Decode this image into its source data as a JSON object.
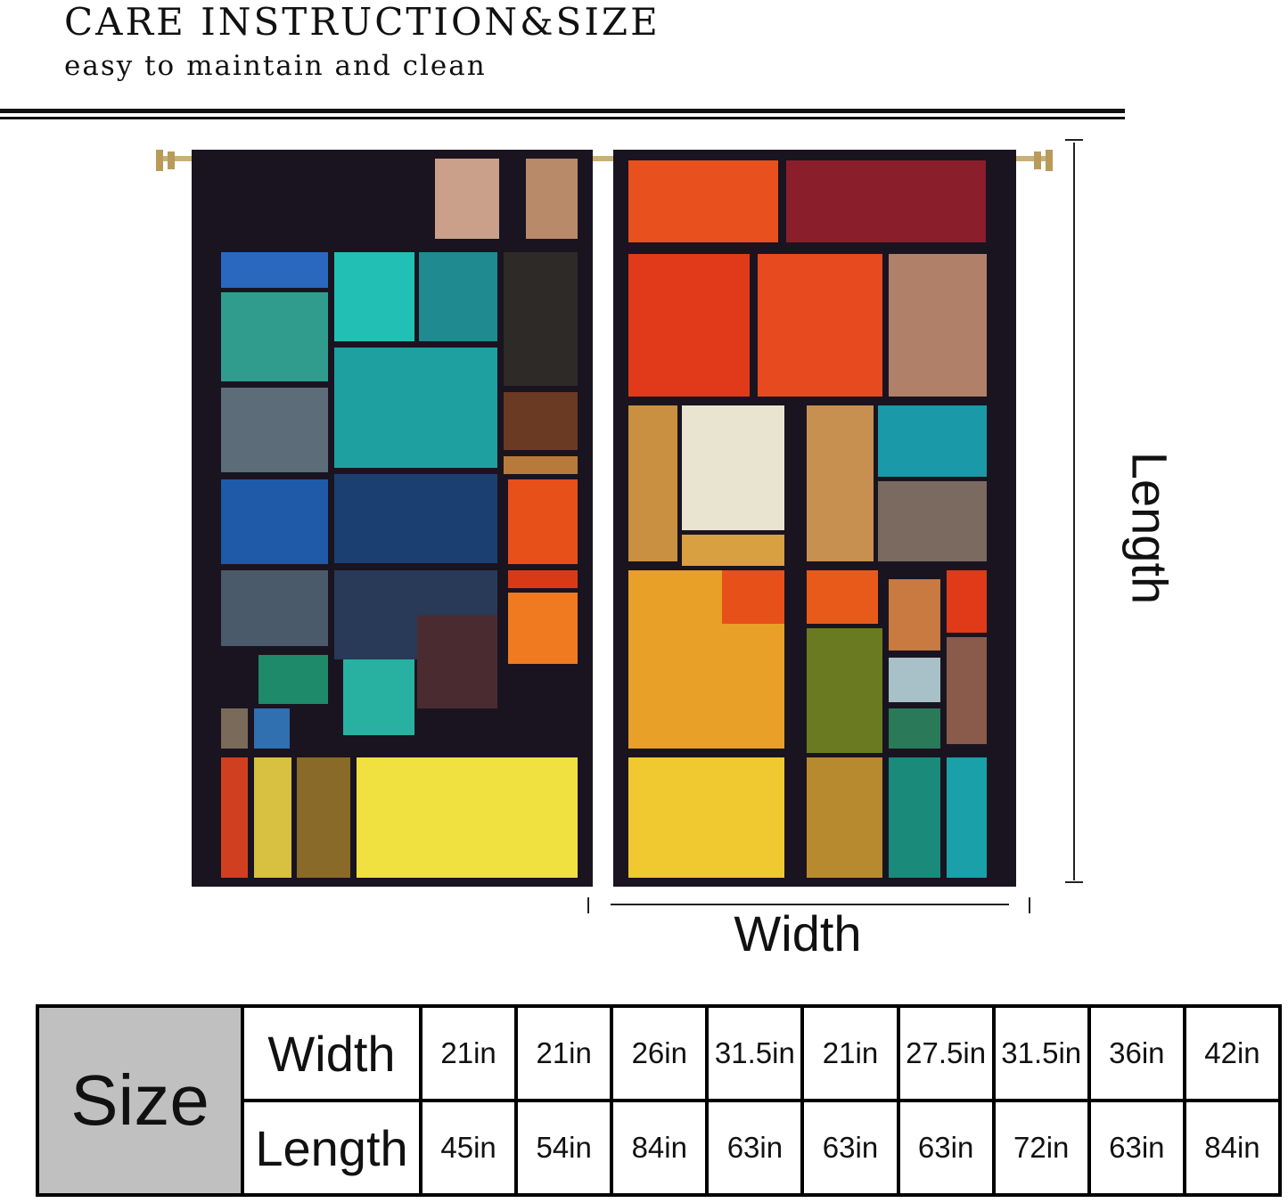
{
  "header": {
    "title": "CARE INSTRUCTION&SIZE",
    "subtitle": "easy to maintain and clean"
  },
  "diagram": {
    "length_label": "Length",
    "width_label": "Width"
  },
  "size_table": {
    "size_label": "Size",
    "width_label": "Width",
    "length_label": "Length",
    "widths": [
      "21in",
      "21in",
      "26in",
      "31.5in",
      "21in",
      "27.5in",
      "31.5in",
      "36in",
      "42in"
    ],
    "lengths": [
      "45in",
      "54in",
      "84in",
      "63in",
      "63in",
      "63in",
      "72in",
      "63in",
      "84in"
    ]
  },
  "colors": {
    "frame": "#1a1420",
    "size_cell_bg": "#c0c0c0"
  }
}
